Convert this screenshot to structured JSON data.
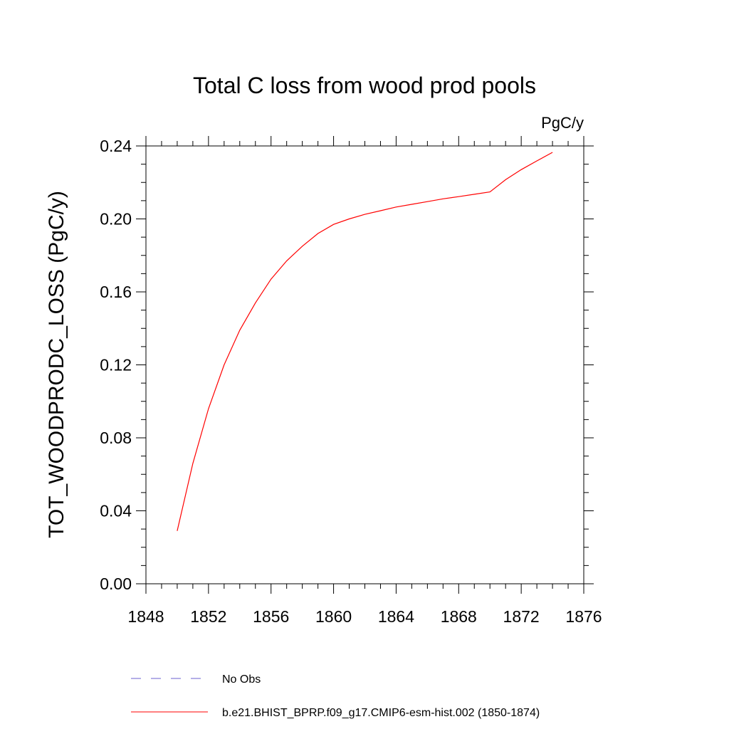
{
  "chart_data": {
    "type": "line",
    "title": "Total C loss from wood prod pools",
    "units_label": "PgC/y",
    "ylabel": "TOT_WOODPRODC_LOSS  (PgC/y)",
    "xlabel": "",
    "xlim": [
      1848,
      1876
    ],
    "ylim": [
      0.0,
      0.24
    ],
    "x_ticks": [
      1848,
      1852,
      1856,
      1860,
      1864,
      1868,
      1872,
      1876
    ],
    "x_tick_labels": [
      "1848",
      "1852",
      "1856",
      "1860",
      "1864",
      "1868",
      "1872",
      "1876"
    ],
    "y_ticks": [
      0.0,
      0.04,
      0.08,
      0.12,
      0.16,
      0.2,
      0.24
    ],
    "y_tick_labels": [
      "0.00",
      "0.04",
      "0.08",
      "0.12",
      "0.16",
      "0.20",
      "0.24"
    ],
    "grid": false,
    "legend_position": "bottom",
    "series": [
      {
        "name": "No Obs",
        "color": "#6b5fd0",
        "style": "dashed",
        "x": [],
        "y": []
      },
      {
        "name": "b.e21.BHIST_BPRP.f09_g17.CMIP6-esm-hist.002 (1850-1874)",
        "color": "#ff0000",
        "style": "solid",
        "x": [
          1850,
          1851,
          1852,
          1853,
          1854,
          1855,
          1856,
          1857,
          1858,
          1859,
          1860,
          1861,
          1862,
          1863,
          1864,
          1865,
          1866,
          1867,
          1868,
          1869,
          1870,
          1871,
          1872,
          1873,
          1874
        ],
        "y": [
          0.029,
          0.066,
          0.096,
          0.12,
          0.139,
          0.154,
          0.167,
          0.177,
          0.185,
          0.192,
          0.197,
          0.2,
          0.2025,
          0.2045,
          0.2065,
          0.208,
          0.2095,
          0.211,
          0.2122,
          0.2135,
          0.2148,
          0.2215,
          0.227,
          0.2318,
          0.2365
        ]
      }
    ]
  }
}
